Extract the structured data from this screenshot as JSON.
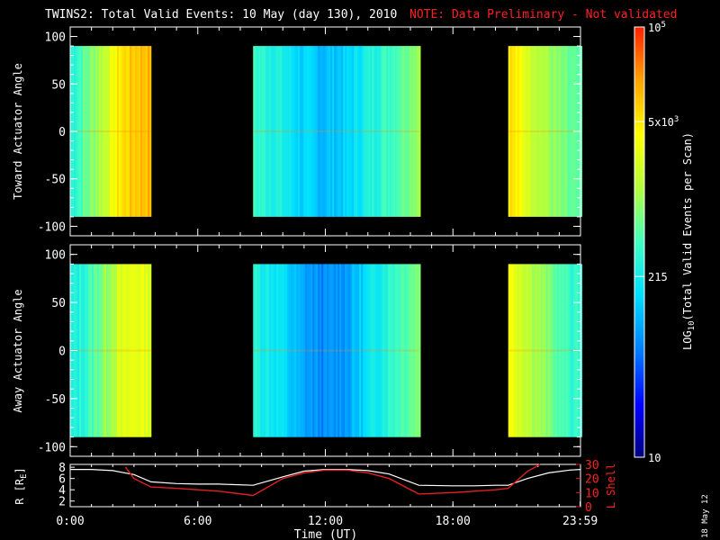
{
  "header": {
    "title": "TWINS2: Total Valid Events: 10 May (day 130), 2010",
    "note": "NOTE: Data Preliminary - Not validated"
  },
  "colors": {
    "background": "#000000",
    "foreground": "#ffffff",
    "note": "#ff2020",
    "white_curve": "#ffffff",
    "red_curve": "#e02020",
    "colormap": [
      "#000080",
      "#0000ff",
      "#0080ff",
      "#00e0ff",
      "#40ffc0",
      "#b0ff40",
      "#ffff00",
      "#ffa000",
      "#ff2000"
    ]
  },
  "chart_data": [
    {
      "type": "heatmap",
      "panel": "top",
      "ylabel": "Toward Actuator Angle",
      "yticks": [
        "100",
        "50",
        "0",
        "-50",
        "-100"
      ],
      "ylim": [
        -110,
        110
      ],
      "xlim": [
        0,
        24
      ],
      "data_y_range": [
        -90,
        90
      ],
      "blocks": [
        {
          "start_hr": 0.0,
          "end_hr": 3.8,
          "level_profile": [
            0.45,
            0.55,
            0.65,
            0.78,
            0.83,
            0.85
          ]
        },
        {
          "start_hr": 8.6,
          "end_hr": 16.4,
          "level_profile": [
            0.48,
            0.44,
            0.36,
            0.33,
            0.36,
            0.45,
            0.52,
            0.62
          ]
        },
        {
          "start_hr": 20.6,
          "end_hr": 24.0,
          "level_profile": [
            0.8,
            0.7,
            0.62,
            0.55,
            0.5
          ]
        }
      ],
      "note": "Top panel colour shown by time block"
    },
    {
      "type": "heatmap",
      "panel": "middle",
      "ylabel": "Away Actuator Angle",
      "yticks": [
        "100",
        "50",
        "0",
        "-50",
        "-100"
      ],
      "ylim": [
        -110,
        110
      ],
      "xlim": [
        0,
        24
      ],
      "data_y_range": [
        -90,
        90
      ],
      "blocks": [
        {
          "start_hr": 0.0,
          "end_hr": 3.8,
          "level_profile": [
            0.42,
            0.48,
            0.58,
            0.68,
            0.72,
            0.7
          ]
        },
        {
          "start_hr": 8.6,
          "end_hr": 16.4,
          "level_profile": [
            0.45,
            0.4,
            0.3,
            0.26,
            0.3,
            0.4,
            0.5,
            0.58
          ]
        },
        {
          "start_hr": 20.6,
          "end_hr": 24.0,
          "level_profile": [
            0.75,
            0.66,
            0.58,
            0.5,
            0.46
          ]
        }
      ]
    },
    {
      "type": "line",
      "panel": "bottom",
      "xlabel": "Time (UT)",
      "xticks": [
        "0:00",
        "6:00",
        "12:00",
        "18:00",
        "23:59"
      ],
      "xtick_hours": [
        0,
        6,
        12,
        18,
        23.983
      ],
      "xlim": [
        0,
        24
      ],
      "ylabel_left": "R [RE]",
      "ylabel_left_base": "R [R",
      "ylabel_left_sub": "E",
      "ylabel_left_close": "]",
      "yticks_left": [
        "8",
        "6",
        "4",
        "2"
      ],
      "ylim_left": [
        1,
        8.5
      ],
      "ylabel_right": "L Shell",
      "yticks_right": [
        "30",
        "20",
        "10",
        "0"
      ],
      "ylim_right": [
        0,
        30
      ],
      "series": [
        {
          "name": "R",
          "axis": "left",
          "x": [
            0,
            1,
            2,
            3,
            3.8,
            5,
            6,
            7,
            8.6,
            10,
            11,
            12,
            13,
            14,
            15,
            16.4,
            18,
            19,
            20,
            20.6,
            21.5,
            22.5,
            23.5,
            24
          ],
          "y": [
            7.6,
            7.6,
            7.4,
            6.7,
            5.4,
            5.1,
            5.0,
            5.0,
            4.8,
            6.3,
            7.3,
            7.6,
            7.6,
            7.4,
            6.8,
            4.8,
            4.7,
            4.7,
            4.8,
            4.8,
            6.0,
            7.0,
            7.5,
            7.6
          ]
        },
        {
          "name": "L",
          "axis": "right",
          "x": [
            2.6,
            3.0,
            3.8,
            5,
            6,
            7,
            8.6,
            10,
            11,
            12,
            13,
            14,
            15,
            16.4,
            18,
            19,
            20,
            20.6,
            21.5,
            22.1
          ],
          "y": [
            28,
            20,
            14,
            13,
            12,
            11,
            8,
            20,
            24,
            26,
            26,
            24,
            20,
            9,
            10,
            11,
            12,
            13,
            25,
            30
          ]
        }
      ]
    }
  ],
  "colorbar": {
    "label": "LOG10(Total Valid Events per Scan)",
    "label_pre": "LOG",
    "label_sub": "10",
    "label_post": "(Total Valid Events per Scan)",
    "ticks": [
      {
        "base": "10",
        "sup": "5",
        "level": 1.0
      },
      {
        "base": "5x10",
        "sup": "3",
        "level": 0.78
      },
      {
        "base": "215",
        "sup": "",
        "level": 0.42
      },
      {
        "base": "10",
        "sup": "",
        "level": 0.0
      }
    ],
    "scale": "log"
  },
  "footer": {
    "date_stamp": "18 May 12"
  }
}
